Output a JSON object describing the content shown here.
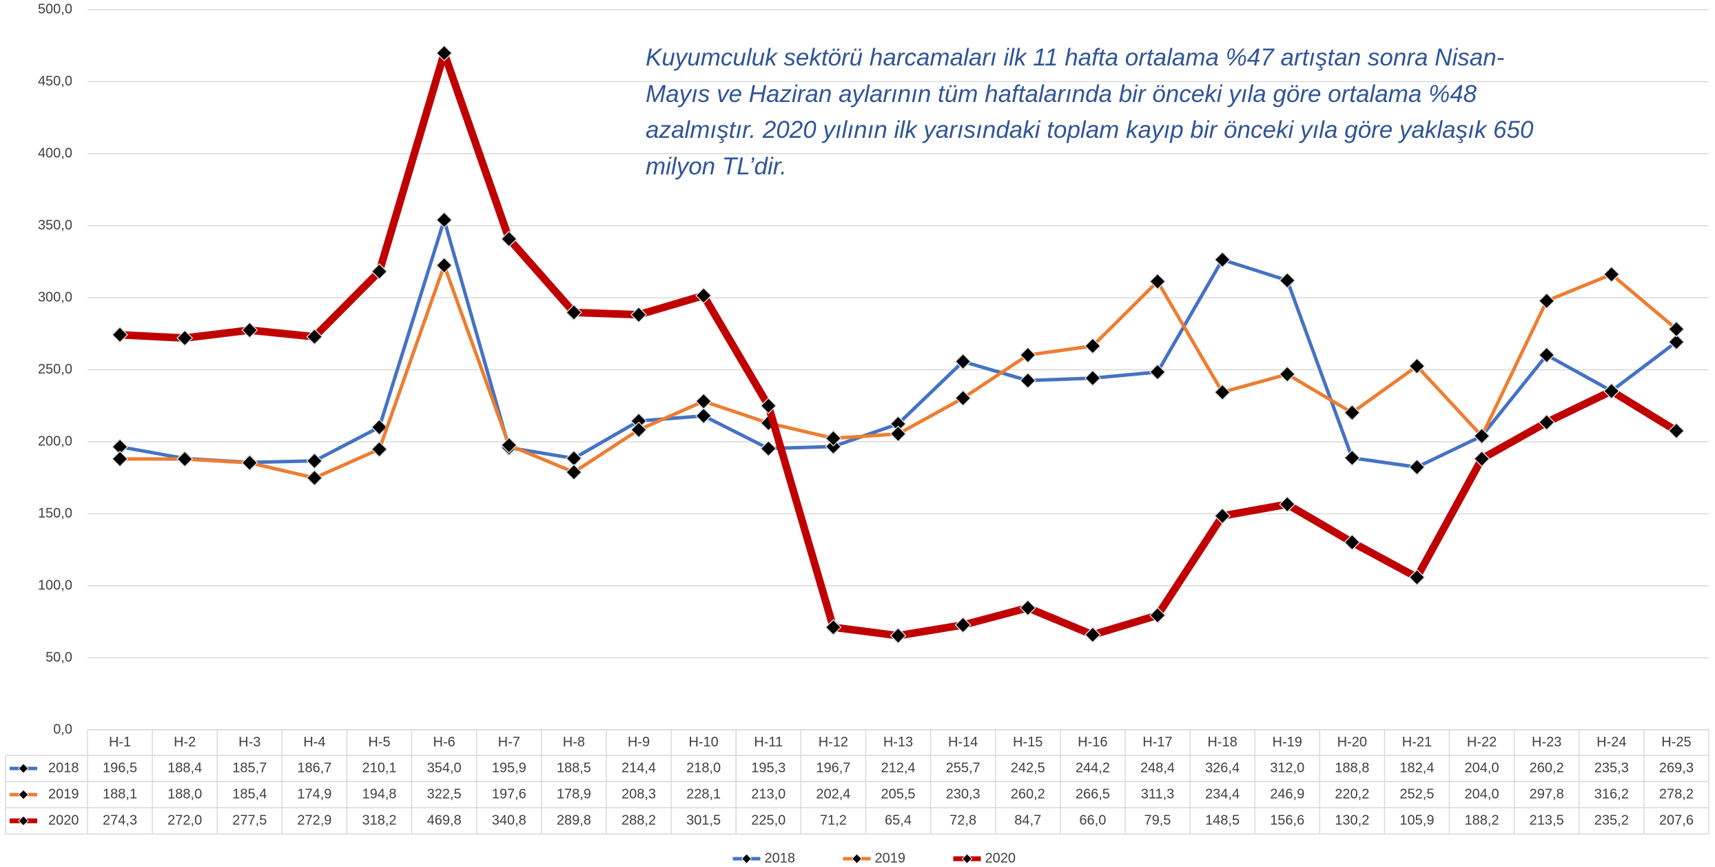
{
  "chart_data": {
    "type": "line",
    "annotation": [
      "Kuyumculuk sektörü harcamaları ilk 11 hafta ortalama %47 artıştan sonra Nisan-",
      "Mayıs ve Haziran aylarının tüm haftalarında bir önceki yıla göre ortalama %48",
      "azalmıştır. 2020 yılının ilk yarısındaki toplam kayıp bir önceki yıla göre yaklaşık 650",
      "milyon TL’dir."
    ],
    "categories": [
      "H-1",
      "H-2",
      "H-3",
      "H-4",
      "H-5",
      "H-6",
      "H-7",
      "H-8",
      "H-9",
      "H-10",
      "H-11",
      "H-12",
      "H-13",
      "H-14",
      "H-15",
      "H-16",
      "H-17",
      "H-18",
      "H-19",
      "H-20",
      "H-21",
      "H-22",
      "H-23",
      "H-24",
      "H-25"
    ],
    "series": [
      {
        "name": "2018",
        "color": "#4472c4",
        "width": 5,
        "values": [
          196.5,
          188.4,
          185.7,
          186.7,
          210.1,
          354.0,
          195.9,
          188.5,
          214.4,
          218.0,
          195.3,
          196.7,
          212.4,
          255.7,
          242.5,
          244.2,
          248.4,
          326.4,
          312.0,
          188.8,
          182.4,
          204.0,
          260.2,
          235.3,
          269.3
        ],
        "value_labels": [
          "196,5",
          "188,4",
          "185,7",
          "186,7",
          "210,1",
          "354,0",
          "195,9",
          "188,5",
          "214,4",
          "218,0",
          "195,3",
          "196,7",
          "212,4",
          "255,7",
          "242,5",
          "244,2",
          "248,4",
          "326,4",
          "312,0",
          "188,8",
          "182,4",
          "204,0",
          "260,2",
          "235,3",
          "269,3"
        ]
      },
      {
        "name": "2019",
        "color": "#ed7d31",
        "width": 5,
        "values": [
          188.1,
          188.0,
          185.4,
          174.9,
          194.8,
          322.5,
          197.6,
          178.9,
          208.3,
          228.1,
          213.0,
          202.4,
          205.5,
          230.3,
          260.2,
          266.5,
          311.3,
          234.4,
          246.9,
          220.2,
          252.5,
          204.0,
          297.8,
          316.2,
          278.2
        ],
        "value_labels": [
          "188,1",
          "188,0",
          "185,4",
          "174,9",
          "194,8",
          "322,5",
          "197,6",
          "178,9",
          "208,3",
          "228,1",
          "213,0",
          "202,4",
          "205,5",
          "230,3",
          "260,2",
          "266,5",
          "311,3",
          "234,4",
          "246,9",
          "220,2",
          "252,5",
          "204,0",
          "297,8",
          "316,2",
          "278,2"
        ]
      },
      {
        "name": "2020",
        "color": "#c00000",
        "width": 11,
        "values": [
          274.3,
          272.0,
          277.5,
          272.9,
          318.2,
          469.8,
          340.8,
          289.8,
          288.2,
          301.5,
          225.0,
          71.2,
          65.4,
          72.8,
          84.7,
          66.0,
          79.5,
          148.5,
          156.6,
          130.2,
          105.9,
          188.2,
          213.5,
          235.2,
          207.6
        ],
        "value_labels": [
          "274,3",
          "272,0",
          "277,5",
          "272,9",
          "318,2",
          "469,8",
          "340,8",
          "289,8",
          "288,2",
          "301,5",
          "225,0",
          "71,2",
          "65,4",
          "72,8",
          "84,7",
          "66,0",
          "79,5",
          "148,5",
          "156,6",
          "130,2",
          "105,9",
          "188,2",
          "213,5",
          "235,2",
          "207,6"
        ]
      }
    ],
    "ylim": [
      0,
      500
    ],
    "yticks": [
      {
        "value": 0,
        "label": "0,0"
      },
      {
        "value": 50,
        "label": "50,0"
      },
      {
        "value": 100,
        "label": "100,0"
      },
      {
        "value": 150,
        "label": "150,0"
      },
      {
        "value": 200,
        "label": "200,0"
      },
      {
        "value": 250,
        "label": "250,0"
      },
      {
        "value": 300,
        "label": "300,0"
      },
      {
        "value": 350,
        "label": "350,0"
      },
      {
        "value": 400,
        "label": "400,0"
      },
      {
        "value": 450,
        "label": "450,0"
      },
      {
        "value": 500,
        "label": "500,0"
      }
    ],
    "grid": true,
    "marker_color": "#000000",
    "legend": "bottom"
  }
}
